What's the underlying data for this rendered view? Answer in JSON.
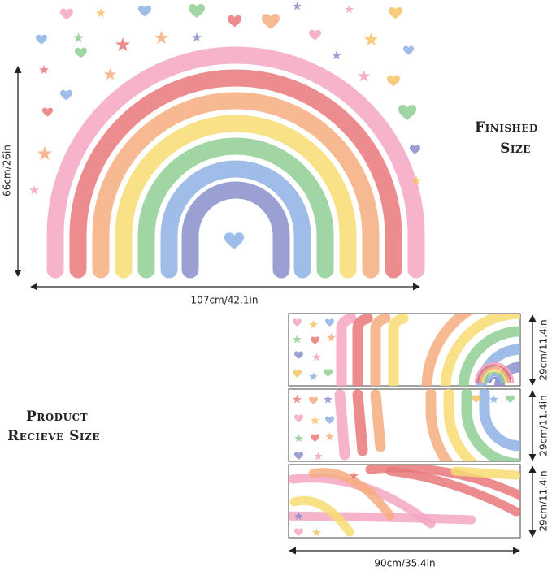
{
  "finished_size": {
    "label_lines": [
      "Finished",
      "Size"
    ],
    "height": "66cm/26in",
    "width": "107cm/42.1in"
  },
  "received_size": {
    "label_lines": [
      "Product",
      "Recieve Size"
    ],
    "sheet_heights": [
      "29cm/11.4in",
      "29cm/11.4in",
      "29cm/11.4in"
    ],
    "width": "90cm/35.4in"
  }
}
